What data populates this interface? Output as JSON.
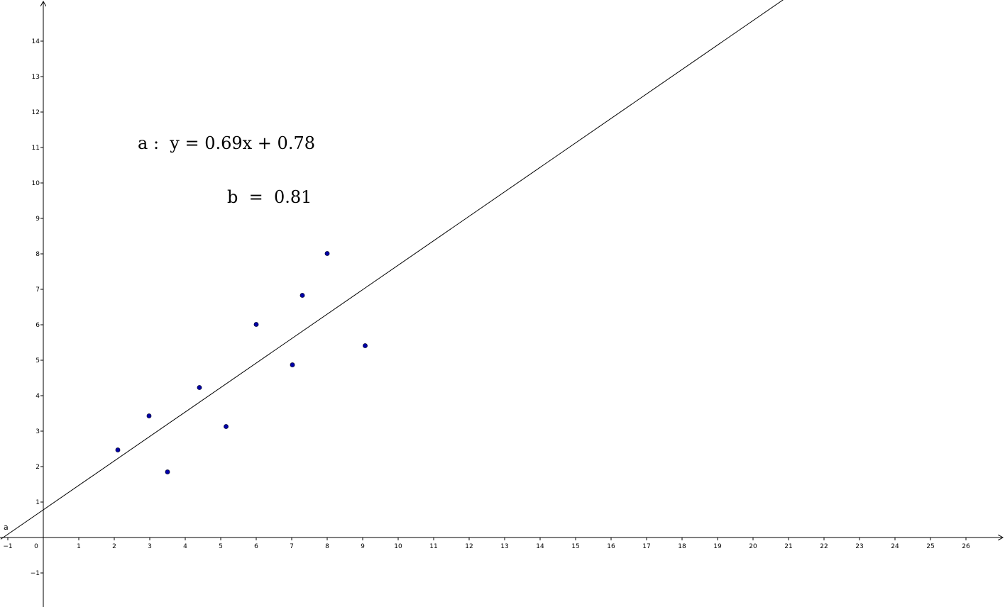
{
  "chart_data": {
    "type": "scatter",
    "title": "",
    "xlabel": "",
    "ylabel": "",
    "xlim": [
      -1.2,
      27.1
    ],
    "ylim": [
      -1.9,
      15.2
    ],
    "grid": false,
    "x_ticks": [
      -1,
      0,
      1,
      2,
      3,
      4,
      5,
      6,
      7,
      8,
      9,
      10,
      11,
      12,
      13,
      14,
      15,
      16,
      17,
      18,
      19,
      20,
      21,
      22,
      23,
      24,
      25,
      26
    ],
    "y_ticks": [
      -1,
      1,
      2,
      3,
      4,
      5,
      6,
      7,
      8,
      9,
      10,
      11,
      12,
      13,
      14
    ],
    "points_color": "#0000aa",
    "line_color": "#000000",
    "points": [
      {
        "x": 2.1,
        "y": 2.47
      },
      {
        "x": 2.98,
        "y": 3.43
      },
      {
        "x": 3.5,
        "y": 1.85
      },
      {
        "x": 4.4,
        "y": 4.23
      },
      {
        "x": 5.15,
        "y": 3.13
      },
      {
        "x": 6.0,
        "y": 6.01
      },
      {
        "x": 7.02,
        "y": 4.87
      },
      {
        "x": 7.3,
        "y": 6.83
      },
      {
        "x": 8.0,
        "y": 8.01
      },
      {
        "x": 9.07,
        "y": 5.41
      }
    ],
    "regression_line": {
      "name": "a",
      "slope": 0.69,
      "intercept": 0.78,
      "equation_label": "a :  y = 0.69x + 0.78"
    },
    "annotations": {
      "b_label": "b  =  0.81"
    }
  }
}
